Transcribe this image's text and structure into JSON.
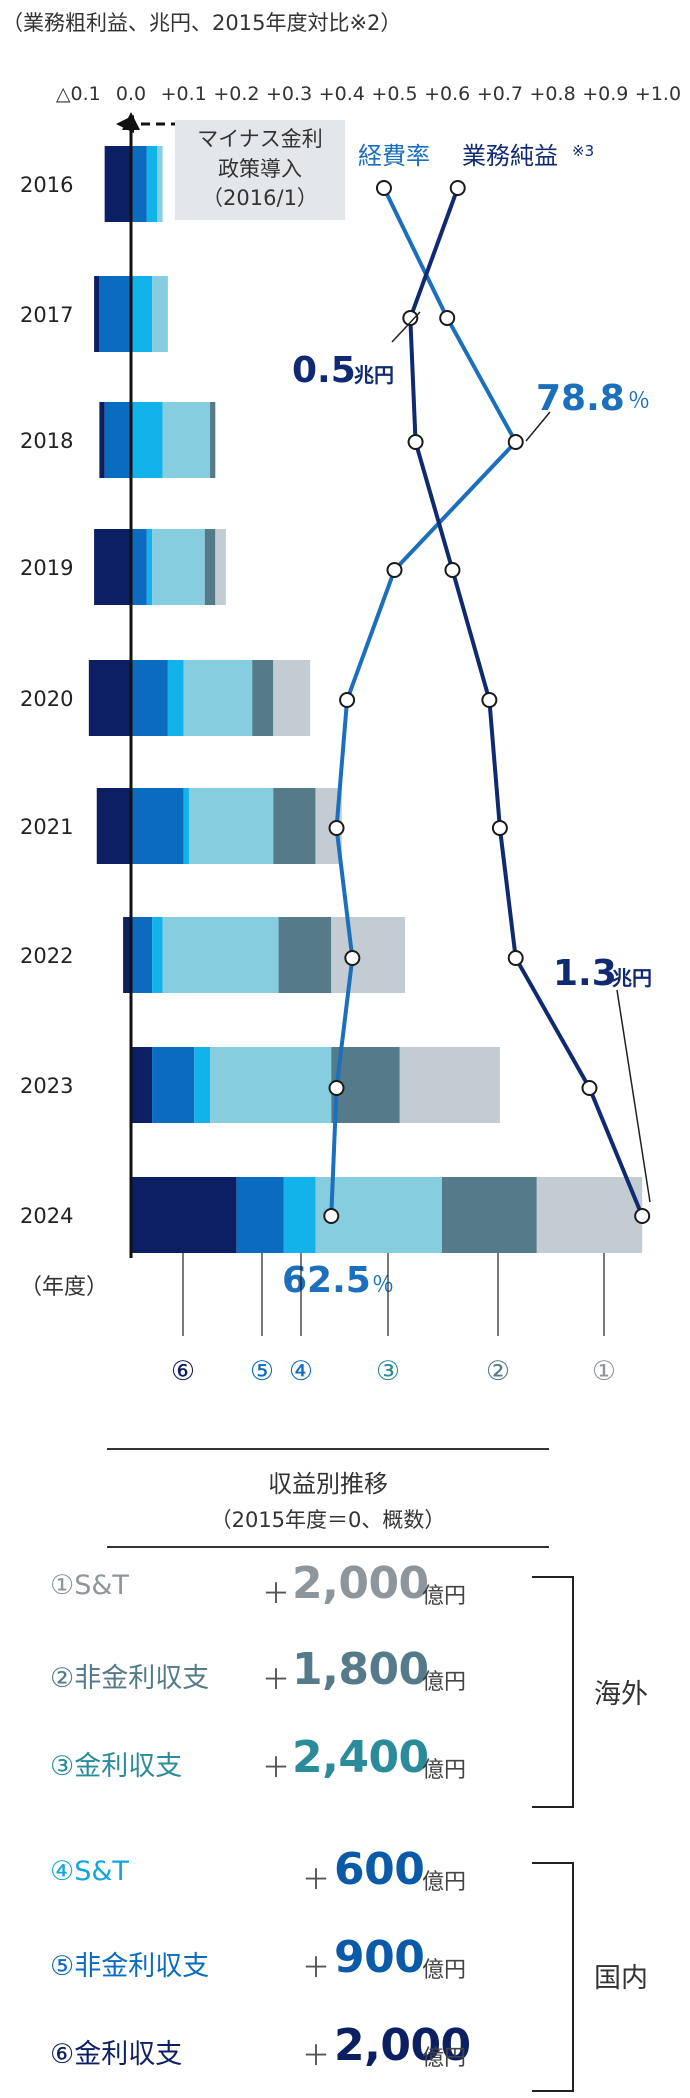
{
  "chart_data": {
    "type": "bar+line",
    "subtitle": "（業務粗利益、兆円、2015年度対比※2）",
    "x_tick_labels": [
      "△0.1",
      "0.0",
      "+0.1",
      "+0.2",
      "+0.3",
      "+0.4",
      "+0.5",
      "+0.6",
      "+0.7",
      "+0.8",
      "+0.9",
      "+1.0"
    ],
    "x_ticks": [
      -0.1,
      0.0,
      0.1,
      0.2,
      0.3,
      0.4,
      0.5,
      0.6,
      0.7,
      0.8,
      0.9,
      1.0
    ],
    "xlim": [
      -0.12,
      1.02
    ],
    "year_axis_label": "（年度）",
    "years": [
      "2016",
      "2017",
      "2018",
      "2019",
      "2020",
      "2021",
      "2022",
      "2023",
      "2024"
    ],
    "segment_order": [
      "⑥",
      "⑤",
      "④",
      "③",
      "②",
      "①"
    ],
    "segment_colors": [
      "#0d1f63",
      "#0b6cbf",
      "#12b2ea",
      "#86cde0",
      "#557b8a",
      "#c3ccd3"
    ],
    "bars": [
      [
        [
          -0.05,
          0.0
        ],
        [
          0.0,
          0.03
        ],
        [
          0.03,
          0.05
        ],
        [
          0.05,
          0.06
        ]
      ],
      [
        [
          -0.07,
          -0.06
        ],
        [
          -0.06,
          0.0
        ],
        [
          0.0,
          0.04
        ],
        [
          0.04,
          0.07
        ]
      ],
      [
        [
          -0.06,
          -0.05
        ],
        [
          -0.05,
          0.0
        ],
        [
          0.0,
          0.06
        ],
        [
          0.06,
          0.15
        ],
        [
          0.15,
          0.16
        ]
      ],
      [
        [
          -0.07,
          0.0
        ],
        [
          0.0,
          0.03
        ],
        [
          0.03,
          0.04
        ],
        [
          0.04,
          0.14
        ],
        [
          0.14,
          0.16
        ],
        [
          0.16,
          0.18
        ]
      ],
      [
        [
          -0.08,
          0.0
        ],
        [
          0.0,
          0.07
        ],
        [
          0.07,
          0.1
        ],
        [
          0.1,
          0.23
        ],
        [
          0.23,
          0.27
        ],
        [
          0.27,
          0.34
        ]
      ],
      [
        [
          -0.065,
          0.0
        ],
        [
          0.0,
          0.1
        ],
        [
          0.1,
          0.11
        ],
        [
          0.11,
          0.27
        ],
        [
          0.27,
          0.35
        ],
        [
          0.35,
          0.4
        ]
      ],
      [
        [
          -0.015,
          0.0
        ],
        [
          0.0,
          0.04
        ],
        [
          0.04,
          0.06
        ],
        [
          0.06,
          0.28
        ],
        [
          0.28,
          0.38
        ],
        [
          0.38,
          0.52
        ]
      ],
      [
        [
          0.0,
          0.04
        ],
        [
          0.04,
          0.12
        ],
        [
          0.12,
          0.15
        ],
        [
          0.15,
          0.38
        ],
        [
          0.38,
          0.51
        ],
        [
          0.51,
          0.7
        ]
      ],
      [
        [
          0.0,
          0.2
        ],
        [
          0.2,
          0.29
        ],
        [
          0.29,
          0.35
        ],
        [
          0.35,
          0.59
        ],
        [
          0.59,
          0.77
        ],
        [
          0.77,
          0.97
        ]
      ]
    ],
    "segment_callouts": [
      "⑥",
      "⑤",
      "④",
      "③",
      "②",
      "①"
    ],
    "series": [
      {
        "name": "経費率",
        "color": "#1b6fbd",
        "values": [
          0.48,
          0.6,
          0.73,
          0.5,
          0.41,
          0.39,
          0.42,
          0.39,
          0.38
        ]
      },
      {
        "name": "業務純益",
        "note": "※3",
        "color": "#102a72",
        "values": [
          0.62,
          0.53,
          0.54,
          0.61,
          0.68,
          0.7,
          0.73,
          0.87,
          0.97
        ]
      }
    ],
    "annotations": {
      "policy_box": [
        "マイナス金利",
        "政策導入",
        "（2016/1）"
      ],
      "net_2017_value": "0.5",
      "net_2017_unit": "兆円",
      "ratio_2018_value": "78.8",
      "ratio_2018_unit": "％",
      "net_2024_value": "1.3",
      "net_2024_unit": "兆円",
      "ratio_2024_value": "62.5",
      "ratio_2024_unit": "％"
    }
  },
  "revenue_table": {
    "title": "収益別推移",
    "subtitle": "（2015年度＝0、概数）",
    "unit": "億円",
    "plus": "＋",
    "overseas_label": "海外",
    "domestic_label": "国内",
    "rows": [
      {
        "label": "①S&T",
        "value": "2,000",
        "color": "#8e969c"
      },
      {
        "label": "②非金利収支",
        "value": "1,800",
        "color": "#557b8a"
      },
      {
        "label": "③金利収支",
        "value": "2,400",
        "color": "#2a8b9a"
      },
      {
        "label": "④S&T",
        "value": "600",
        "color": "#12a6dc"
      },
      {
        "label": "⑤非金利収支",
        "value": "900",
        "color": "#0b6cbf"
      },
      {
        "label": "⑥金利収支",
        "value": "2,000",
        "color": "#0d1f63"
      }
    ]
  }
}
